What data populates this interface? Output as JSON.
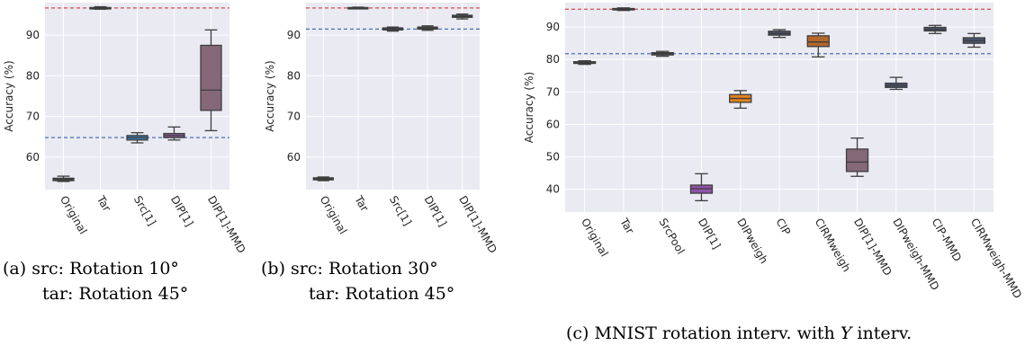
{
  "chart_data": [
    {
      "type": "box",
      "ylabel": "Accuracy (%)",
      "ylim": [
        52,
        98
      ],
      "yticks": [
        60,
        70,
        80,
        90
      ],
      "grid": true,
      "categories": [
        "Original",
        "Tar",
        "Src[1]",
        "DIP[1]",
        "DIP[1]-MMD"
      ],
      "boxes": [
        {
          "min": 54.0,
          "q1": 54.2,
          "median": 54.5,
          "q3": 54.8,
          "max": 55.3,
          "color": "#4c566e"
        },
        {
          "min": 96.4,
          "q1": 96.6,
          "median": 96.7,
          "q3": 96.8,
          "max": 97.0,
          "color": "#4c566e"
        },
        {
          "min": 63.5,
          "q1": 64.2,
          "median": 64.8,
          "q3": 65.3,
          "max": 66.0,
          "color": "#3f78a8"
        },
        {
          "min": 64.2,
          "q1": 64.8,
          "median": 65.3,
          "q3": 65.8,
          "max": 67.4,
          "color": "#8a5c9c"
        },
        {
          "min": 66.5,
          "q1": 71.5,
          "median": 76.5,
          "q3": 87.5,
          "max": 91.3,
          "color": "#856878"
        }
      ],
      "hlines": [
        {
          "value": 96.7,
          "color": "#d94a4a"
        },
        {
          "value": 64.8,
          "color": "#4a6fb5"
        }
      ],
      "caption_lines": [
        "(a) src: Rotation 10°",
        "tar: Rotation 45°"
      ]
    },
    {
      "type": "box",
      "ylabel": "Accuracy (%)",
      "ylim": [
        52,
        98
      ],
      "yticks": [
        60,
        70,
        80,
        90
      ],
      "grid": true,
      "categories": [
        "Original",
        "Tar",
        "Src[1]",
        "DIP[1]",
        "DIP[1]-MMD"
      ],
      "boxes": [
        {
          "min": 54.2,
          "q1": 54.4,
          "median": 54.6,
          "q3": 54.9,
          "max": 55.1,
          "color": "#4c566e"
        },
        {
          "min": 96.5,
          "q1": 96.6,
          "median": 96.7,
          "q3": 96.8,
          "max": 96.9,
          "color": "#4c566e"
        },
        {
          "min": 91.0,
          "q1": 91.3,
          "median": 91.5,
          "q3": 91.8,
          "max": 92.0,
          "color": "#4c566e"
        },
        {
          "min": 91.2,
          "q1": 91.5,
          "median": 91.7,
          "q3": 92.0,
          "max": 92.3,
          "color": "#4c566e"
        },
        {
          "min": 94.0,
          "q1": 94.4,
          "median": 94.6,
          "q3": 94.9,
          "max": 95.2,
          "color": "#4c566e"
        }
      ],
      "hlines": [
        {
          "value": 96.7,
          "color": "#d94a4a"
        },
        {
          "value": 91.5,
          "color": "#4a6fb5"
        }
      ],
      "caption_lines": [
        "(b) src: Rotation 30°",
        "tar: Rotation 45°"
      ]
    },
    {
      "type": "box",
      "ylabel": "Accuracy (%)",
      "ylim": [
        33,
        97.5
      ],
      "yticks": [
        40,
        50,
        60,
        70,
        80,
        90
      ],
      "grid": true,
      "categories": [
        "Original",
        "Tar",
        "SrcPool",
        "DIP[1]",
        "DIPweigh",
        "CIP",
        "CIRMweigh",
        "DIP[1]-MMD",
        "DIPweigh-MMD",
        "CIP-MMD",
        "CIRMweigh-MMD"
      ],
      "boxes": [
        {
          "min": 78.5,
          "q1": 78.8,
          "median": 79.0,
          "q3": 79.3,
          "max": 79.6,
          "color": "#4c566e"
        },
        {
          "min": 95.1,
          "q1": 95.3,
          "median": 95.5,
          "q3": 95.7,
          "max": 95.9,
          "color": "#4c566e"
        },
        {
          "min": 81.0,
          "q1": 81.4,
          "median": 81.8,
          "q3": 82.1,
          "max": 82.5,
          "color": "#4c566e"
        },
        {
          "min": 36.5,
          "q1": 38.8,
          "median": 40.2,
          "q3": 41.3,
          "max": 44.8,
          "color": "#8e52a8"
        },
        {
          "min": 65.0,
          "q1": 66.8,
          "median": 68.0,
          "q3": 69.2,
          "max": 70.4,
          "color": "#e3821e"
        },
        {
          "min": 86.8,
          "q1": 87.5,
          "median": 88.0,
          "q3": 88.7,
          "max": 89.2,
          "color": "#4c566e"
        },
        {
          "min": 80.8,
          "q1": 84.0,
          "median": 85.4,
          "q3": 87.3,
          "max": 88.1,
          "color": "#b5682a"
        },
        {
          "min": 44.0,
          "q1": 45.5,
          "median": 48.4,
          "q3": 52.4,
          "max": 55.8,
          "color": "#856878"
        },
        {
          "min": 70.8,
          "q1": 71.4,
          "median": 72.0,
          "q3": 72.7,
          "max": 74.5,
          "color": "#4c566e"
        },
        {
          "min": 88.0,
          "q1": 88.8,
          "median": 89.3,
          "q3": 89.9,
          "max": 90.5,
          "color": "#4c566e"
        },
        {
          "min": 83.8,
          "q1": 85.0,
          "median": 85.8,
          "q3": 86.7,
          "max": 88.0,
          "color": "#4c566e"
        }
      ],
      "hlines": [
        {
          "value": 95.5,
          "color": "#d94a4a"
        },
        {
          "value": 81.8,
          "color": "#4a6fb5"
        }
      ],
      "caption_lines": [
        "(c) MNIST rotation interv. with ",
        "Y",
        " interv."
      ]
    }
  ]
}
